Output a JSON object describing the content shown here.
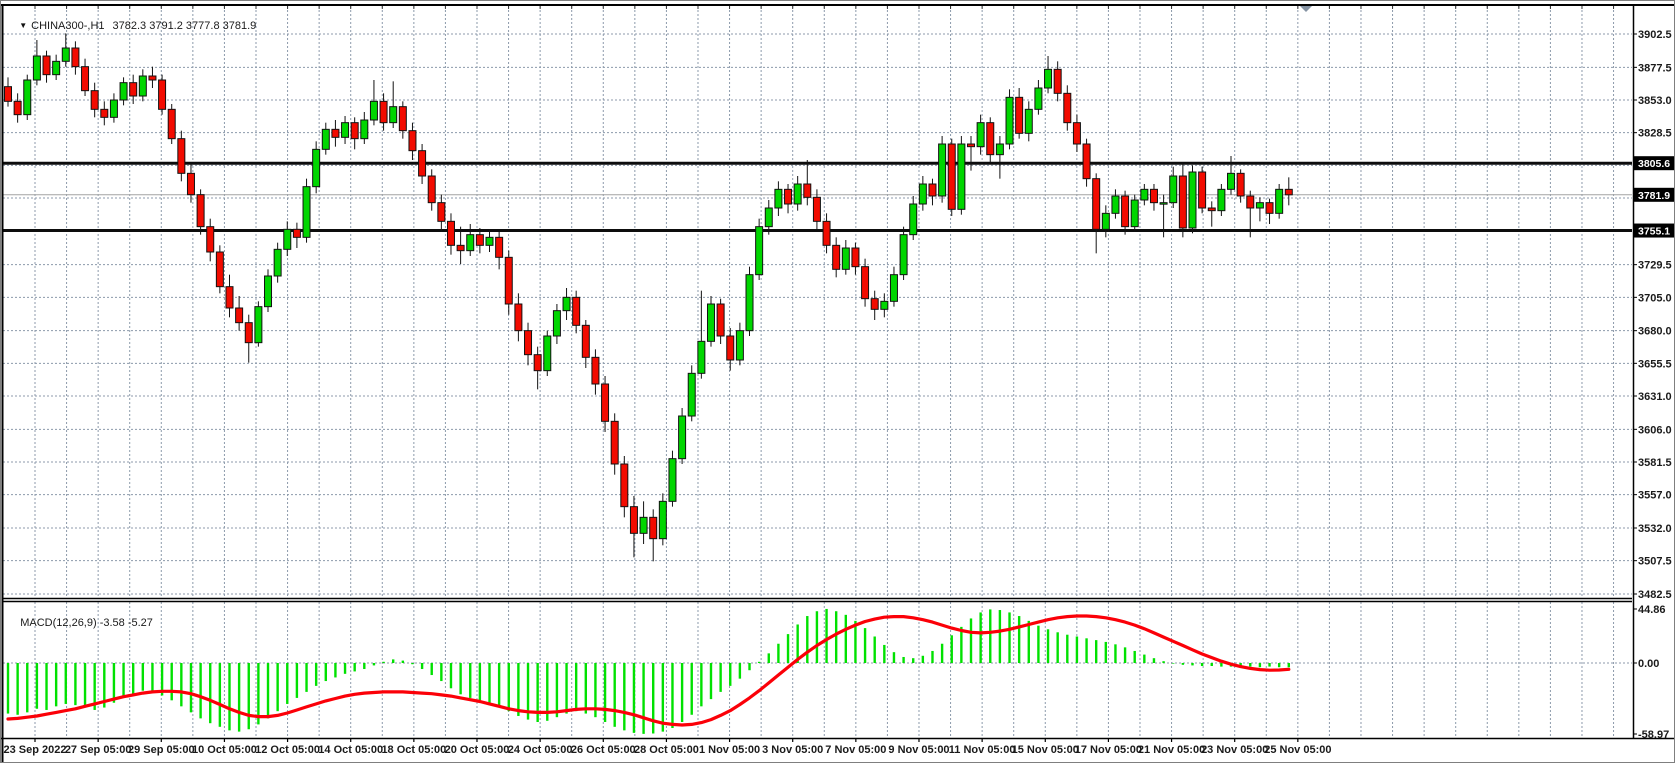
{
  "window": {
    "symbol_period": "CHINA300-,H1",
    "quote_string": "3782.3 3791.2 3777.8 3781.9",
    "dropdown_arrow": "▼"
  },
  "macd_panel": {
    "indicator_label": "MACD(12,26,9)",
    "indicator_values": "-3.58 -5.27",
    "axis_labels": [
      "44.86",
      "0.00",
      "-58.97"
    ]
  },
  "price_axis": {
    "badges": [
      "3805.6",
      "3781.9",
      "3755.1"
    ],
    "visible_labels": [
      "3902.5",
      "3877.5",
      "3853.0",
      "3828.5",
      "3729.5",
      "3705.0",
      "3680.0",
      "3655.5",
      "3631.0",
      "3606.0",
      "3581.5",
      "3557.0",
      "3532.0",
      "3507.5",
      "3482.5"
    ]
  },
  "time_axis": {
    "labels": [
      "23 Sep 2022",
      "27 Sep 05:00",
      "29 Sep 05:00",
      "10 Oct 05:00",
      "12 Oct 05:00",
      "14 Oct 05:00",
      "18 Oct 05:00",
      "20 Oct 05:00",
      "24 Oct 05:00",
      "26 Oct 05:00",
      "28 Oct 05:00",
      "1 Nov 05:00",
      "3 Nov 05:00",
      "7 Nov 05:00",
      "9 Nov 05:00",
      "11 Nov 05:00",
      "15 Nov 05:00",
      "17 Nov 05:00",
      "21 Nov 05:00",
      "23 Nov 05:00",
      "25 Nov 05:00"
    ]
  },
  "colors": {
    "bull_candle": "#00d600",
    "bear_candle": "#f20b00",
    "candle_outline": "#121212",
    "grid": "#8c9aab",
    "sr_line": "#0d0d0d",
    "bid_line": "#a3a3a3",
    "macd_histogram": "#00e100",
    "macd_signal": "#fb0008",
    "badge_bg": "#000000",
    "badge_text": "#ffffff",
    "axis_text": "#1a1a1a",
    "scroll_marker": "#8593a3"
  },
  "chart_data": {
    "type": "candlestick",
    "title": "CHINA300-,H1 3782.3 3791.2 3777.8 3781.9",
    "price_range": [
      3482.5,
      3902.5
    ],
    "grid_prices": [
      3902.5,
      3877.5,
      3853.0,
      3828.5,
      3804.0,
      3779.5,
      3754.5,
      3729.5,
      3705.0,
      3680.0,
      3655.5,
      3631.0,
      3606.0,
      3581.5,
      3557.0,
      3532.0,
      3507.5,
      3482.5
    ],
    "hidden_grid_price_indices": [
      4,
      5,
      6
    ],
    "levels": {
      "resistance": 3805.6,
      "bid": 3781.9,
      "support": 3755.1
    },
    "candles_ohlc": [
      [
        3863,
        3870,
        3848,
        3852
      ],
      [
        3852,
        3858,
        3836,
        3842
      ],
      [
        3842,
        3872,
        3838,
        3868
      ],
      [
        3868,
        3898,
        3864,
        3886
      ],
      [
        3886,
        3890,
        3866,
        3872
      ],
      [
        3872,
        3887,
        3868,
        3882
      ],
      [
        3882,
        3903,
        3878,
        3892
      ],
      [
        3892,
        3897,
        3872,
        3878
      ],
      [
        3878,
        3884,
        3856,
        3860
      ],
      [
        3860,
        3866,
        3840,
        3846
      ],
      [
        3846,
        3852,
        3834,
        3840
      ],
      [
        3840,
        3858,
        3836,
        3853
      ],
      [
        3853,
        3870,
        3849,
        3866
      ],
      [
        3866,
        3872,
        3850,
        3856
      ],
      [
        3856,
        3876,
        3852,
        3871
      ],
      [
        3871,
        3878,
        3862,
        3868
      ],
      [
        3868,
        3872,
        3842,
        3846
      ],
      [
        3846,
        3850,
        3820,
        3824
      ],
      [
        3824,
        3830,
        3792,
        3798
      ],
      [
        3798,
        3806,
        3776,
        3782
      ],
      [
        3782,
        3786,
        3752,
        3758
      ],
      [
        3758,
        3764,
        3732,
        3739
      ],
      [
        3739,
        3744,
        3708,
        3713
      ],
      [
        3713,
        3722,
        3690,
        3697
      ],
      [
        3697,
        3706,
        3680,
        3686
      ],
      [
        3686,
        3692,
        3656,
        3671
      ],
      [
        3671,
        3702,
        3668,
        3698
      ],
      [
        3698,
        3726,
        3694,
        3721
      ],
      [
        3721,
        3746,
        3716,
        3741
      ],
      [
        3741,
        3762,
        3736,
        3756
      ],
      [
        3756,
        3761,
        3742,
        3750
      ],
      [
        3750,
        3794,
        3746,
        3788
      ],
      [
        3788,
        3822,
        3783,
        3816
      ],
      [
        3816,
        3836,
        3812,
        3831
      ],
      [
        3831,
        3838,
        3818,
        3825
      ],
      [
        3825,
        3841,
        3820,
        3836
      ],
      [
        3836,
        3840,
        3816,
        3824
      ],
      [
        3824,
        3844,
        3820,
        3838
      ],
      [
        3838,
        3868,
        3834,
        3852
      ],
      [
        3852,
        3858,
        3830,
        3836
      ],
      [
        3836,
        3867,
        3832,
        3848
      ],
      [
        3848,
        3852,
        3824,
        3830
      ],
      [
        3830,
        3836,
        3808,
        3815
      ],
      [
        3815,
        3820,
        3790,
        3796
      ],
      [
        3796,
        3801,
        3770,
        3776
      ],
      [
        3776,
        3782,
        3754,
        3762
      ],
      [
        3762,
        3768,
        3737,
        3744
      ],
      [
        3744,
        3758,
        3730,
        3740
      ],
      [
        3740,
        3760,
        3736,
        3752
      ],
      [
        3752,
        3757,
        3738,
        3744
      ],
      [
        3744,
        3756,
        3739,
        3750
      ],
      [
        3750,
        3754,
        3726,
        3735
      ],
      [
        3735,
        3740,
        3692,
        3700
      ],
      [
        3700,
        3708,
        3672,
        3680
      ],
      [
        3680,
        3686,
        3654,
        3662
      ],
      [
        3662,
        3668,
        3636,
        3650
      ],
      [
        3650,
        3680,
        3646,
        3676
      ],
      [
        3676,
        3700,
        3670,
        3695
      ],
      [
        3695,
        3712,
        3688,
        3705
      ],
      [
        3705,
        3710,
        3678,
        3684
      ],
      [
        3684,
        3688,
        3652,
        3660
      ],
      [
        3660,
        3666,
        3632,
        3640
      ],
      [
        3640,
        3646,
        3604,
        3612
      ],
      [
        3612,
        3618,
        3572,
        3580
      ],
      [
        3580,
        3586,
        3540,
        3548
      ],
      [
        3548,
        3556,
        3510,
        3528
      ],
      [
        3528,
        3552,
        3520,
        3540
      ],
      [
        3540,
        3546,
        3507,
        3524
      ],
      [
        3524,
        3558,
        3519,
        3552
      ],
      [
        3552,
        3590,
        3548,
        3584
      ],
      [
        3584,
        3622,
        3580,
        3616
      ],
      [
        3616,
        3654,
        3612,
        3648
      ],
      [
        3648,
        3710,
        3644,
        3672
      ],
      [
        3672,
        3706,
        3668,
        3700
      ],
      [
        3700,
        3704,
        3670,
        3676
      ],
      [
        3676,
        3682,
        3650,
        3658
      ],
      [
        3658,
        3686,
        3654,
        3680
      ],
      [
        3680,
        3728,
        3676,
        3722
      ],
      [
        3722,
        3764,
        3718,
        3758
      ],
      [
        3758,
        3778,
        3752,
        3772
      ],
      [
        3772,
        3792,
        3766,
        3786
      ],
      [
        3786,
        3790,
        3768,
        3775
      ],
      [
        3775,
        3796,
        3770,
        3790
      ],
      [
        3790,
        3808,
        3774,
        3780
      ],
      [
        3780,
        3786,
        3756,
        3762
      ],
      [
        3762,
        3768,
        3738,
        3744
      ],
      [
        3744,
        3750,
        3720,
        3726
      ],
      [
        3726,
        3748,
        3722,
        3742
      ],
      [
        3742,
        3746,
        3722,
        3728
      ],
      [
        3728,
        3734,
        3698,
        3704
      ],
      [
        3704,
        3710,
        3688,
        3696
      ],
      [
        3696,
        3708,
        3690,
        3702
      ],
      [
        3702,
        3728,
        3698,
        3722
      ],
      [
        3722,
        3758,
        3718,
        3752
      ],
      [
        3752,
        3781,
        3748,
        3775
      ],
      [
        3775,
        3796,
        3770,
        3790
      ],
      [
        3790,
        3794,
        3774,
        3781
      ],
      [
        3781,
        3826,
        3776,
        3820
      ],
      [
        3820,
        3824,
        3766,
        3771
      ],
      [
        3771,
        3826,
        3767,
        3820
      ],
      [
        3820,
        3826,
        3800,
        3818
      ],
      [
        3818,
        3842,
        3812,
        3836
      ],
      [
        3836,
        3840,
        3806,
        3812
      ],
      [
        3812,
        3826,
        3794,
        3820
      ],
      [
        3820,
        3861,
        3816,
        3855
      ],
      [
        3855,
        3862,
        3824,
        3828
      ],
      [
        3828,
        3852,
        3822,
        3846
      ],
      [
        3846,
        3868,
        3842,
        3862
      ],
      [
        3862,
        3886,
        3858,
        3876
      ],
      [
        3876,
        3882,
        3852,
        3858
      ],
      [
        3858,
        3864,
        3830,
        3836
      ],
      [
        3836,
        3842,
        3814,
        3820
      ],
      [
        3820,
        3824,
        3788,
        3794
      ],
      [
        3794,
        3798,
        3738,
        3756
      ],
      [
        3756,
        3774,
        3750,
        3768
      ],
      [
        3768,
        3786,
        3764,
        3781
      ],
      [
        3781,
        3785,
        3752,
        3758
      ],
      [
        3758,
        3782,
        3754,
        3778
      ],
      [
        3778,
        3790,
        3774,
        3786
      ],
      [
        3786,
        3790,
        3770,
        3776
      ],
      [
        3776,
        3782,
        3750,
        3776
      ],
      [
        3776,
        3803,
        3772,
        3796
      ],
      [
        3796,
        3806,
        3750,
        3757
      ],
      [
        3757,
        3804,
        3753,
        3799
      ],
      [
        3799,
        3803,
        3768,
        3772
      ],
      [
        3772,
        3777,
        3758,
        3770
      ],
      [
        3770,
        3790,
        3766,
        3786
      ],
      [
        3786,
        3811,
        3782,
        3798
      ],
      [
        3798,
        3801,
        3776,
        3781
      ],
      [
        3781,
        3785,
        3750,
        3772
      ],
      [
        3772,
        3780,
        3762,
        3776
      ],
      [
        3776,
        3779,
        3760,
        3768
      ],
      [
        3768,
        3790,
        3764,
        3786
      ],
      [
        3786,
        3795,
        3774,
        3781.9
      ]
    ],
    "macd": {
      "params": "12,26,9",
      "current_main": -3.58,
      "current_signal": -5.27,
      "scale_max": 44.86,
      "scale_min": -58.97,
      "histogram": [
        -42,
        -43,
        -41,
        -38,
        -39,
        -36,
        -34,
        -35,
        -37,
        -39,
        -37,
        -33,
        -29,
        -26,
        -23,
        -24,
        -27,
        -31,
        -36,
        -41,
        -46,
        -50,
        -53,
        -56,
        -57,
        -55,
        -51,
        -46,
        -40,
        -34,
        -29,
        -24,
        -19,
        -15,
        -12,
        -9,
        -7,
        -5,
        -2,
        1,
        3,
        2,
        -1,
        -5,
        -10,
        -15,
        -21,
        -26,
        -29,
        -31,
        -33,
        -36,
        -40,
        -44,
        -47,
        -49,
        -48,
        -45,
        -42,
        -40,
        -42,
        -45,
        -49,
        -53,
        -56,
        -58,
        -58.9,
        -58.5,
        -57,
        -54,
        -49,
        -43,
        -36,
        -30,
        -24,
        -19,
        -13,
        -6,
        1,
        8,
        16,
        24,
        32,
        39,
        43,
        44.9,
        43,
        40,
        35,
        29,
        22,
        15,
        9,
        5,
        4,
        6,
        10,
        16,
        23,
        30,
        37,
        42,
        44.5,
        44,
        42,
        39,
        35,
        31,
        28,
        25.5,
        23.5,
        22,
        20.5,
        19,
        17.5,
        15.5,
        13,
        10,
        7,
        4,
        1.5,
        -0.5,
        -1.5,
        -2,
        -2.5,
        -2.5,
        -3,
        -3,
        -3.5,
        -3,
        -3.5,
        -3,
        -3.5,
        -3.58
      ],
      "signal": [
        -46.5,
        -46,
        -45,
        -44,
        -42.5,
        -41,
        -39.5,
        -38,
        -36,
        -34,
        -32,
        -30,
        -28,
        -26.5,
        -25,
        -24,
        -23.5,
        -23.5,
        -24,
        -25.5,
        -28,
        -31,
        -34.5,
        -38,
        -41,
        -43.5,
        -44.5,
        -44.5,
        -43.5,
        -41.5,
        -39,
        -36.5,
        -34,
        -31.5,
        -29.5,
        -27.5,
        -26,
        -25,
        -24.5,
        -24,
        -24,
        -24,
        -24.5,
        -25,
        -25.5,
        -26.5,
        -27.5,
        -29,
        -30.5,
        -32,
        -34,
        -36,
        -38,
        -39.5,
        -40.5,
        -41,
        -41,
        -40.5,
        -39.5,
        -38.5,
        -38,
        -38,
        -38.5,
        -39.5,
        -41,
        -43,
        -45.5,
        -48,
        -50,
        -51,
        -51.5,
        -51,
        -49.5,
        -47,
        -43.5,
        -39.5,
        -34.5,
        -29,
        -23,
        -16.5,
        -10,
        -3.5,
        3,
        9,
        14.5,
        19.5,
        24,
        28,
        31.5,
        34.5,
        36.5,
        38,
        38.5,
        38.5,
        37.5,
        36,
        34,
        31.5,
        29,
        27,
        25.5,
        25,
        25.5,
        26.5,
        28,
        30,
        32,
        34,
        36,
        37.5,
        38.5,
        39,
        39,
        38.5,
        37.5,
        36,
        34,
        31.5,
        28.5,
        25,
        21.5,
        18,
        14.5,
        11,
        7.5,
        4.5,
        1.5,
        -1,
        -3,
        -4.5,
        -5.5,
        -6,
        -5.8,
        -5.27
      ]
    }
  }
}
